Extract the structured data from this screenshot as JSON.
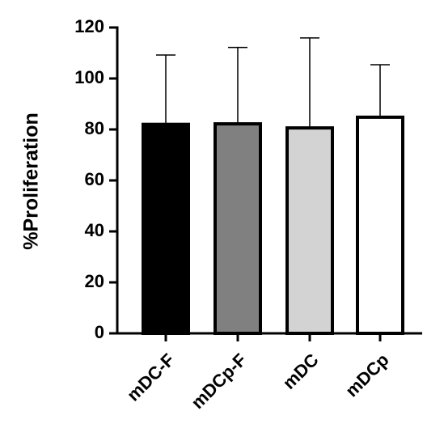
{
  "chart_data": {
    "type": "bar",
    "ylabel": "%Proliferation",
    "categories": [
      "mDC-F",
      "mDCp-F",
      "mDC",
      "mDCp"
    ],
    "values": [
      82,
      82.2,
      80.6,
      84.8
    ],
    "errors": [
      27.2,
      30,
      35.3,
      20.6
    ],
    "colors": [
      "#000000",
      "#808080",
      "#d3d3d3",
      "#ffffff"
    ],
    "edgecolor": "#000000",
    "ylim": [
      0,
      120
    ],
    "yticks": [
      0,
      20,
      40,
      60,
      80,
      100,
      120
    ],
    "grid": false
  }
}
